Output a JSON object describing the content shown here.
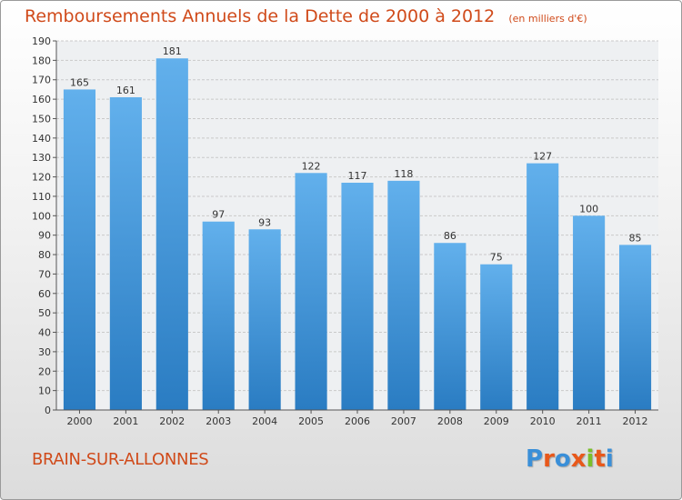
{
  "header": {
    "title": "Remboursements Annuels de la Dette de 2000 à 2012",
    "subtitle": "(en milliers d'€)"
  },
  "footer": {
    "city": "BRAIN-SUR-ALLONNES",
    "logo_text": "Proxiti"
  },
  "colors": {
    "title": "#d04a1a",
    "bar_top": "#62b0ec",
    "bar_bottom": "#2a7cc2",
    "logo": [
      "#3a8fd8",
      "#e8581a",
      "#3a8fd8",
      "#e8581a",
      "#7bbf2a",
      "#e8581a",
      "#3a8fd8"
    ]
  },
  "chart_data": {
    "type": "bar",
    "categories": [
      "2000",
      "2001",
      "2002",
      "2003",
      "2004",
      "2005",
      "2006",
      "2007",
      "2008",
      "2009",
      "2010",
      "2011",
      "2012"
    ],
    "values": [
      165,
      161,
      181,
      97,
      93,
      122,
      117,
      118,
      86,
      75,
      127,
      100,
      85
    ],
    "title": "Remboursements Annuels de la Dette de 2000 à 2012",
    "subtitle": "(en milliers d'€)",
    "xlabel": "",
    "ylabel": "",
    "ylim": [
      0,
      190
    ],
    "ytick_step": 10,
    "grid": true,
    "legend": "none"
  }
}
